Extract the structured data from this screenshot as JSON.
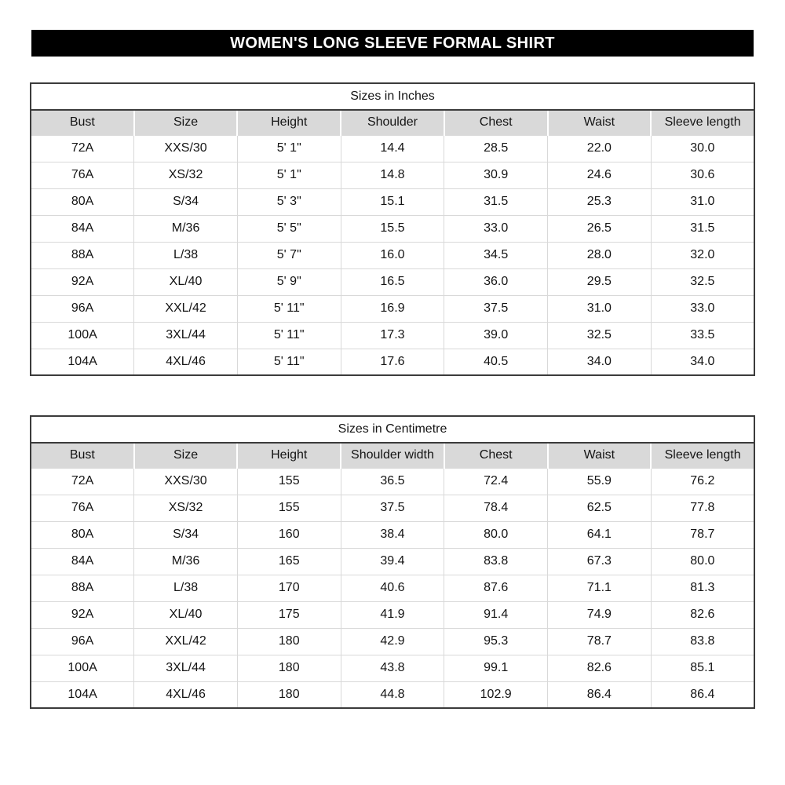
{
  "page_title": "WOMEN'S LONG SLEEVE FORMAL SHIRT",
  "colors": {
    "banner_bg": "#000000",
    "banner_text": "#ffffff",
    "header_row_bg": "#d9d9d9",
    "grid_line": "#d9d9d9",
    "outer_border": "#3b3b3b",
    "text": "#141414"
  },
  "tables": [
    {
      "id": "inches",
      "caption": "Sizes in Inches",
      "columns": [
        "Bust",
        "Size",
        "Height",
        "Shoulder",
        "Chest",
        "Waist",
        "Sleeve length"
      ],
      "rows": [
        [
          "72A",
          "XXS/30",
          "5' 1\"",
          "14.4",
          "28.5",
          "22.0",
          "30.0"
        ],
        [
          "76A",
          "XS/32",
          "5' 1\"",
          "14.8",
          "30.9",
          "24.6",
          "30.6"
        ],
        [
          "80A",
          "S/34",
          "5' 3\"",
          "15.1",
          "31.5",
          "25.3",
          "31.0"
        ],
        [
          "84A",
          "M/36",
          "5' 5\"",
          "15.5",
          "33.0",
          "26.5",
          "31.5"
        ],
        [
          "88A",
          "L/38",
          "5' 7\"",
          "16.0",
          "34.5",
          "28.0",
          "32.0"
        ],
        [
          "92A",
          "XL/40",
          "5' 9\"",
          "16.5",
          "36.0",
          "29.5",
          "32.5"
        ],
        [
          "96A",
          "XXL/42",
          "5' 11\"",
          "16.9",
          "37.5",
          "31.0",
          "33.0"
        ],
        [
          "100A",
          "3XL/44",
          "5' 11\"",
          "17.3",
          "39.0",
          "32.5",
          "33.5"
        ],
        [
          "104A",
          "4XL/46",
          "5' 11\"",
          "17.6",
          "40.5",
          "34.0",
          "34.0"
        ]
      ]
    },
    {
      "id": "centimetre",
      "caption": "Sizes in Centimetre",
      "columns": [
        "Bust",
        "Size",
        "Height",
        "Shoulder width",
        "Chest",
        "Waist",
        "Sleeve length"
      ],
      "rows": [
        [
          "72A",
          "XXS/30",
          "155",
          "36.5",
          "72.4",
          "55.9",
          "76.2"
        ],
        [
          "76A",
          "XS/32",
          "155",
          "37.5",
          "78.4",
          "62.5",
          "77.8"
        ],
        [
          "80A",
          "S/34",
          "160",
          "38.4",
          "80.0",
          "64.1",
          "78.7"
        ],
        [
          "84A",
          "M/36",
          "165",
          "39.4",
          "83.8",
          "67.3",
          "80.0"
        ],
        [
          "88A",
          "L/38",
          "170",
          "40.6",
          "87.6",
          "71.1",
          "81.3"
        ],
        [
          "92A",
          "XL/40",
          "175",
          "41.9",
          "91.4",
          "74.9",
          "82.6"
        ],
        [
          "96A",
          "XXL/42",
          "180",
          "42.9",
          "95.3",
          "78.7",
          "83.8"
        ],
        [
          "100A",
          "3XL/44",
          "180",
          "43.8",
          "99.1",
          "82.6",
          "85.1"
        ],
        [
          "104A",
          "4XL/46",
          "180",
          "44.8",
          "102.9",
          "86.4",
          "86.4"
        ]
      ]
    }
  ]
}
